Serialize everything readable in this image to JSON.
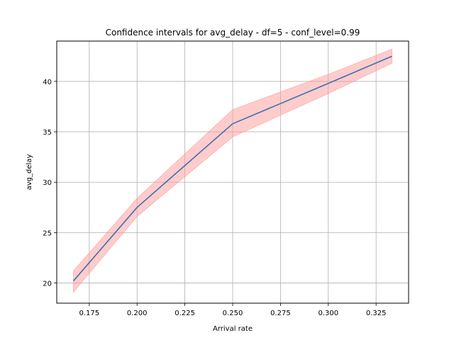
{
  "chart_data": {
    "type": "line",
    "title": "Confidence intervals for avg_delay - df=5 - conf_level=0.99",
    "xlabel": "Arrival rate",
    "ylabel": "avg_delay",
    "xlim": [
      0.158,
      0.342
    ],
    "ylim": [
      18.0,
      44.0
    ],
    "xticks": [
      0.175,
      0.2,
      0.225,
      0.25,
      0.275,
      0.3,
      0.325
    ],
    "xtick_labels": [
      "0.175",
      "0.200",
      "0.225",
      "0.250",
      "0.275",
      "0.300",
      "0.325"
    ],
    "yticks": [
      20,
      25,
      30,
      35,
      40
    ],
    "ytick_labels": [
      "20",
      "25",
      "30",
      "35",
      "40"
    ],
    "grid": true,
    "legend": "none",
    "x": [
      0.1667,
      0.2,
      0.25,
      0.3,
      0.3333
    ],
    "series": [
      {
        "values": [
          20.2,
          27.5,
          35.8,
          39.8,
          42.5
        ],
        "lower": [
          19.1,
          26.6,
          34.5,
          38.8,
          41.8
        ],
        "upper": [
          21.2,
          28.4,
          37.2,
          40.7,
          43.2
        ],
        "line_color": "#3a70b0",
        "band_color": "#ff9a9a"
      }
    ]
  }
}
